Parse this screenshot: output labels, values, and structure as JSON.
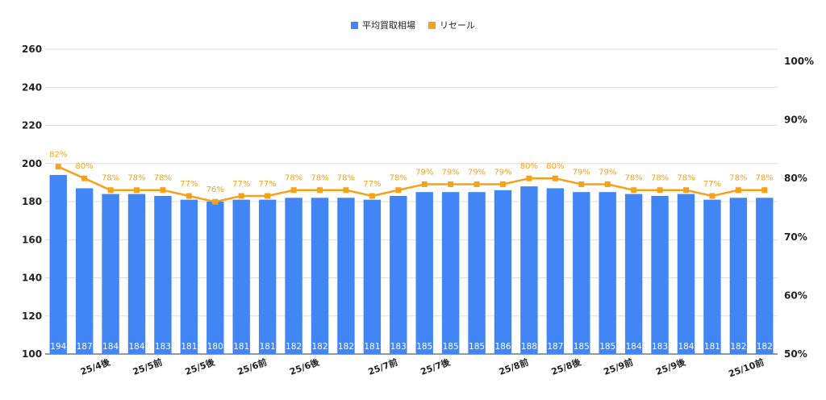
{
  "chart_data": {
    "type": "bar",
    "colors": {
      "bar": "#4285f4",
      "line": "#f5a21b",
      "grid": "#dddddd"
    },
    "legend": {
      "position": "top-center",
      "items": [
        "平均買取相場",
        "リセール"
      ]
    },
    "grid": true,
    "x_tick_labels": [
      "25/4後",
      "25/5前",
      "25/5後",
      "25/6前",
      "25/6後",
      "25/7前",
      "25/7後",
      "25/8前",
      "25/8後",
      "25/9前",
      "25/9後",
      "25/10前"
    ],
    "x_tick_index": [
      2,
      4,
      6,
      8,
      10,
      13,
      15,
      18,
      20,
      22,
      24,
      27
    ],
    "y_left": {
      "ticks": [
        "100",
        "120",
        "140",
        "160",
        "180",
        "200",
        "220",
        "240",
        "260"
      ],
      "ylim": [
        100,
        260
      ]
    },
    "y_right": {
      "ticks": [
        "50%",
        "60%",
        "70%",
        "80%",
        "90%",
        "100%"
      ],
      "ylim": [
        50,
        100
      ]
    },
    "series": [
      {
        "name": "平均買取相場",
        "type": "bar",
        "values": [
          194,
          187,
          184,
          184,
          183,
          181,
          180,
          181,
          181,
          182,
          182,
          182,
          181,
          183,
          185,
          185,
          185,
          186,
          188,
          187,
          185,
          185,
          184,
          183,
          184,
          181,
          182,
          182
        ],
        "labels": [
          "194",
          "187",
          "184",
          "184",
          "183",
          "181",
          "180",
          "181",
          "181",
          "182",
          "182",
          "182",
          "181",
          "183",
          "185",
          "185",
          "185",
          "186",
          "188",
          "187",
          "185",
          "185",
          "184",
          "183",
          "184",
          "181",
          "182",
          "182"
        ]
      },
      {
        "name": "リセール",
        "type": "line",
        "axis": "right",
        "values": [
          82,
          80,
          78,
          78,
          78,
          77,
          76,
          77,
          77,
          78,
          78,
          78,
          77,
          78,
          79,
          79,
          79,
          79,
          80,
          80,
          79,
          79,
          78,
          78,
          78,
          77,
          78,
          78
        ],
        "labels": [
          "82%",
          "80%",
          "78%",
          "78%",
          "78%",
          "77%",
          "76%",
          "77%",
          "77%",
          "78%",
          "78%",
          "78%",
          "77%",
          "78%",
          "79%",
          "79%",
          "79%",
          "79%",
          "80%",
          "80%",
          "79%",
          "79%",
          "78%",
          "78%",
          "78%",
          "77%",
          "78%",
          "78%"
        ]
      }
    ]
  }
}
